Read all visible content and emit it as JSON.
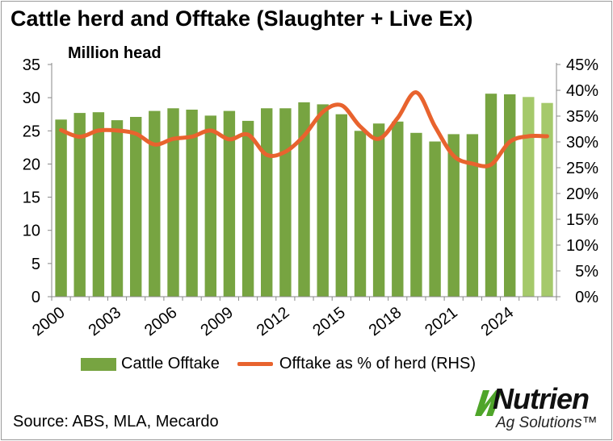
{
  "colors": {
    "bar": "#77A441",
    "bar_forecast": "#A5C96B",
    "line": "#E8632E",
    "grid": "#d9d9d9",
    "logo_green": "#4FA52A"
  },
  "source": "Source: ABS, MLA, Mecardo",
  "logo": {
    "name": "Nutrien",
    "sub": "Ag Solutions™",
    "icon": "nutrien-leaf-icon"
  },
  "chart_data": {
    "type": "bar",
    "title": "Cattle herd and Offtake (Slaughter + Live Ex)",
    "ylabel": "Million head",
    "x": [
      2000,
      2001,
      2002,
      2003,
      2004,
      2005,
      2006,
      2007,
      2008,
      2009,
      2010,
      2011,
      2012,
      2013,
      2014,
      2015,
      2016,
      2017,
      2018,
      2019,
      2020,
      2021,
      2022,
      2023,
      2024,
      2025,
      2026
    ],
    "x_tick_labels": [
      "2000",
      "2003",
      "2006",
      "2009",
      "2012",
      "2015",
      "2018",
      "2021",
      "2024"
    ],
    "ylim": [
      0,
      35
    ],
    "y_ticks": [
      "0",
      "5",
      "10",
      "15",
      "20",
      "25",
      "30",
      "35"
    ],
    "y2lim": [
      0,
      45
    ],
    "y2_ticks": [
      "0%",
      "5%",
      "10%",
      "15%",
      "20%",
      "25%",
      "30%",
      "35%",
      "40%",
      "45%"
    ],
    "grid": false,
    "legend_position": "bottom",
    "series": [
      {
        "name": "Cattle Offtake",
        "type": "bar",
        "axis": "left",
        "values": [
          26.7,
          27.7,
          27.8,
          26.6,
          27.1,
          28.0,
          28.4,
          28.2,
          27.3,
          28.0,
          26.5,
          28.4,
          28.4,
          29.3,
          29.0,
          27.5,
          25.0,
          26.1,
          26.4,
          24.7,
          23.4,
          24.5,
          24.5,
          30.6,
          30.5,
          30.1,
          29.2
        ],
        "forecast_from_index": 25
      },
      {
        "name": "Offtake as % of herd (RHS)",
        "type": "line",
        "axis": "right",
        "values": [
          32.3,
          31.0,
          32.2,
          32.2,
          31.6,
          29.5,
          30.6,
          31.0,
          32.2,
          30.5,
          31.4,
          27.5,
          28.1,
          31.2,
          35.8,
          37.1,
          33.0,
          30.6,
          34.6,
          39.6,
          33.0,
          27.3,
          25.8,
          25.6,
          30.0,
          31.1,
          31.1
        ]
      }
    ]
  }
}
